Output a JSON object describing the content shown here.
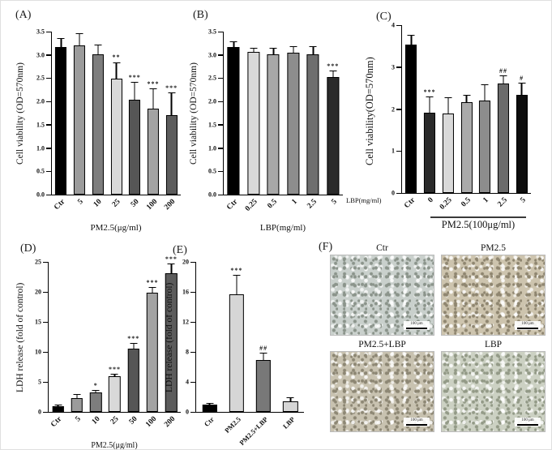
{
  "chart_data": [
    {
      "panel_label": "(A)",
      "type": "bar",
      "ylabel": "Cell viability (OD=570nm)",
      "xlabel": "PM2.5(μg/ml)",
      "ylim": [
        0,
        3.5
      ],
      "ytick_values": [
        0,
        0.5,
        1.0,
        1.5,
        2.0,
        2.5,
        3.0,
        3.5
      ],
      "ytick_labels": [
        "0.0",
        "0.5",
        "1.0",
        "1.5",
        "2.0",
        "2.5",
        "3.0",
        "3.5"
      ],
      "categories": [
        "Ctr",
        "5",
        "10",
        "25",
        "50",
        "100",
        "200"
      ],
      "values": [
        3.17,
        3.21,
        3.02,
        2.49,
        2.03,
        1.84,
        1.7
      ],
      "errors": [
        0.17,
        0.23,
        0.18,
        0.34,
        0.37,
        0.42,
        0.48
      ],
      "significance": [
        "",
        "",
        "",
        "**",
        "***",
        "***",
        "***"
      ],
      "bar_colors": [
        "#000000",
        "#9b9b9b",
        "#7d7d7d",
        "#d9d9d9",
        "#565656",
        "#a3a3a3",
        "#5c5c5c"
      ],
      "legend": "none",
      "grid": "off"
    },
    {
      "panel_label": "(B)",
      "type": "bar",
      "ylabel": "Cell viability (OD=570nm)",
      "xlabel": "LBP(mg/ml)",
      "ylim": [
        0,
        3.5
      ],
      "ytick_values": [
        0,
        0.5,
        1.0,
        1.5,
        2.0,
        2.5,
        3.0,
        3.5
      ],
      "ytick_labels": [
        "0.0",
        "0.5",
        "1.0",
        "1.5",
        "2.0",
        "2.5",
        "3.0",
        "3.5"
      ],
      "categories": [
        "Ctr",
        "0.25",
        "0.5",
        "1",
        "2.5",
        "5"
      ],
      "values": [
        3.17,
        3.07,
        3.01,
        3.04,
        3.01,
        2.52
      ],
      "errors": [
        0.1,
        0.06,
        0.12,
        0.13,
        0.16,
        0.12
      ],
      "significance": [
        "",
        "",
        "",
        "",
        "",
        "***"
      ],
      "bar_colors": [
        "#000000",
        "#d9d9d9",
        "#a8a8a8",
        "#8d8d8d",
        "#6e6e6e",
        "#2a2a2a"
      ],
      "legend": "none",
      "grid": "off"
    },
    {
      "panel_label": "(C)",
      "type": "bar",
      "ylabel": "Cell viability(OD=570nm)",
      "xlabel": "",
      "row_label": "LBP(mg/ml)",
      "group_label": "PM2.5(100μg/ml)",
      "ylim": [
        0,
        4
      ],
      "ytick_values": [
        0,
        1,
        2,
        3,
        4
      ],
      "ytick_labels": [
        "0",
        "1",
        "2",
        "3",
        "4"
      ],
      "categories": [
        "Ctr",
        "0",
        "0.25",
        "0.5",
        "1",
        "2.5",
        "5"
      ],
      "values": [
        3.53,
        1.91,
        1.9,
        2.16,
        2.2,
        2.61,
        2.34
      ],
      "errors": [
        0.21,
        0.38,
        0.37,
        0.15,
        0.38,
        0.18,
        0.27
      ],
      "significance": [
        "",
        "***",
        "",
        "",
        "",
        "##",
        "#"
      ],
      "bar_colors": [
        "#000000",
        "#2a2a2a",
        "#d9d9d9",
        "#aaaaaa",
        "#8d8d8d",
        "#6b6b6b",
        "#0d0d0d"
      ],
      "legend": "none",
      "grid": "off"
    },
    {
      "panel_label": "(D)",
      "type": "bar",
      "ylabel": "LDH release (fold of control)",
      "xlabel": "PM2.5(μg/ml)",
      "ylim": [
        0,
        25
      ],
      "ytick_values": [
        0,
        5,
        10,
        15,
        20,
        25
      ],
      "ytick_labels": [
        "0",
        "5",
        "10",
        "15",
        "20",
        "25"
      ],
      "categories": [
        "Ctr",
        "5",
        "10",
        "25",
        "50",
        "100",
        "200"
      ],
      "values": [
        1.0,
        2.3,
        3.2,
        5.9,
        10.5,
        19.8,
        23.1
      ],
      "errors": [
        0.15,
        0.5,
        0.25,
        0.3,
        0.8,
        0.9,
        1.5
      ],
      "significance": [
        "",
        "",
        "*",
        "***",
        "***",
        "***",
        "***"
      ],
      "bar_colors": [
        "#000000",
        "#9b9b9b",
        "#7d7d7d",
        "#d9d9d9",
        "#565656",
        "#a3a3a3",
        "#5c5c5c"
      ],
      "legend": "none",
      "grid": "off"
    },
    {
      "panel_label": "(E)",
      "type": "bar",
      "ylabel": "LDH release (fold of control)",
      "xlabel": "",
      "ylim": [
        0,
        20
      ],
      "ytick_values": [
        0,
        4,
        8,
        12,
        16,
        20
      ],
      "ytick_labels": [
        "0",
        "4",
        "8",
        "12",
        "16",
        "20"
      ],
      "categories": [
        "Ctr",
        "PM2.5",
        "PM2.5+LBP",
        "LBP"
      ],
      "values": [
        1.0,
        15.7,
        6.9,
        1.4
      ],
      "errors": [
        0.12,
        2.5,
        0.9,
        0.4
      ],
      "significance": [
        "",
        "***",
        "##",
        ""
      ],
      "bar_colors": [
        "#000000",
        "#d6d6d6",
        "#787878",
        "#d6d6d6"
      ],
      "legend": "none",
      "grid": "off"
    }
  ],
  "micrographs": {
    "panel_label": "(F)",
    "scale_bar_label": "100 μm",
    "images": [
      {
        "label": "Ctr",
        "tint": "#c9d0cc",
        "speck": "#8b948b"
      },
      {
        "label": "PM2.5",
        "tint": "#cdc4ae",
        "speck": "#8f8670"
      },
      {
        "label": "PM2.5+LBP",
        "tint": "#c8c2b0",
        "speck": "#8d8774"
      },
      {
        "label": "LBP",
        "tint": "#ccd1c3",
        "speck": "#939a87"
      }
    ]
  }
}
